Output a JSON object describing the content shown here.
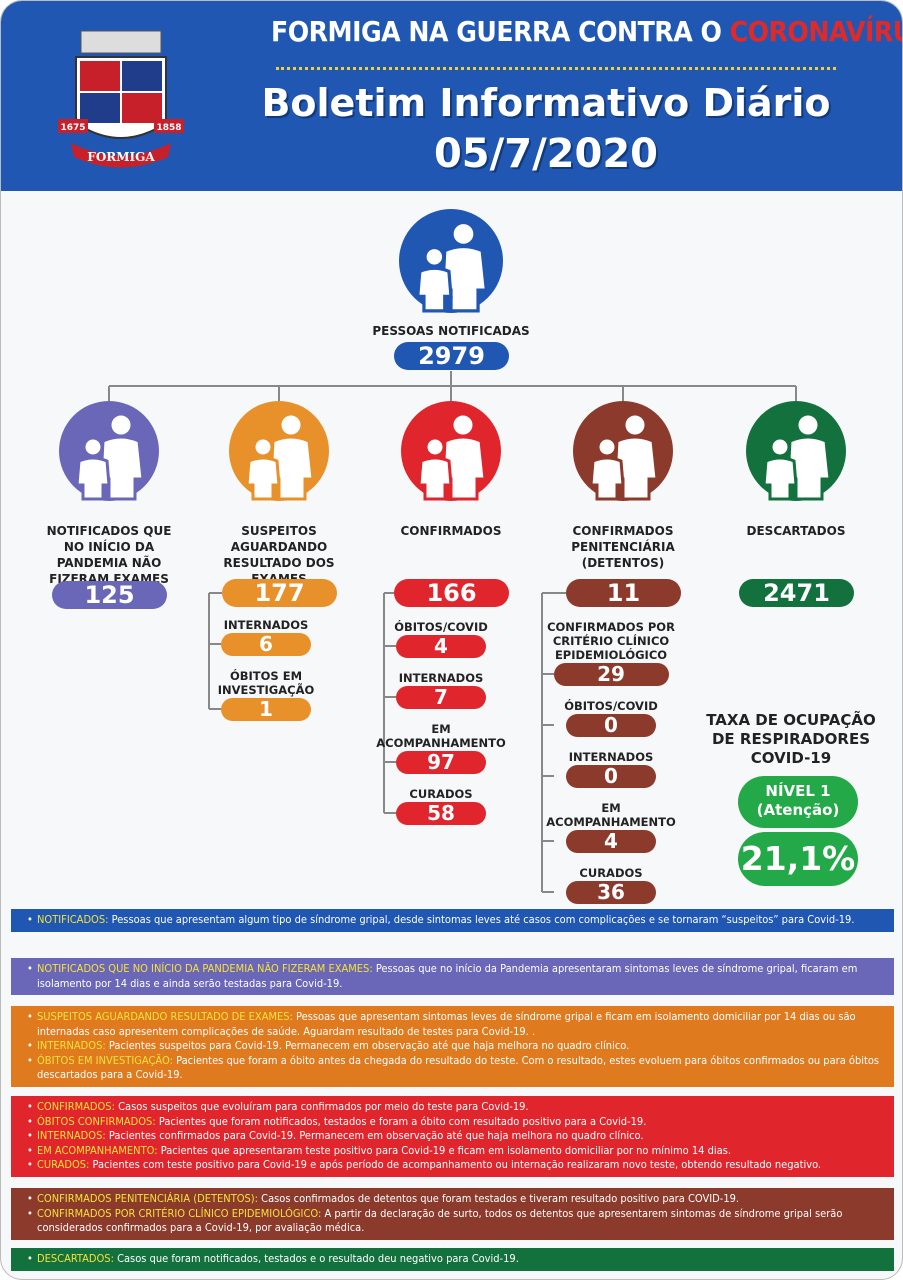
{
  "header": {
    "title_prefix": "FORMIGA NA GUERRA CONTRA O",
    "title_highlight": "CORONAVÍRUS",
    "subtitle": "Boletim Informativo Diário",
    "date": "05/7/2020",
    "logo": {
      "year_left": "1675",
      "year_right": "1858",
      "name": "FORMIGA"
    }
  },
  "notified": {
    "label": "PESSOAS NOTIFICADAS",
    "value": 2979,
    "color": "#2057b3"
  },
  "columns": [
    {
      "label": "NOTIFICADOS QUE NO INÍCIO DA PANDEMIA NÃO FIZERAM EXAMES",
      "value": 125,
      "color": "#6b67b8",
      "items": []
    },
    {
      "label": "SUSPEITOS AGUARDANDO RESULTADO DOS EXAMES",
      "value": 177,
      "color": "#e8912a",
      "items": [
        {
          "label": "INTERNADOS",
          "value": 6
        },
        {
          "label": "ÓBITOS EM INVESTIGAÇÃO",
          "value": 1
        }
      ]
    },
    {
      "label": "CONFIRMADOS",
      "value": 166,
      "color": "#e0252d",
      "items": [
        {
          "label": "ÓBITOS/COVID",
          "value": 4
        },
        {
          "label": "INTERNADOS",
          "value": 7
        },
        {
          "label": "EM ACOMPANHAMENTO",
          "value": 97
        },
        {
          "label": "CURADOS",
          "value": 58
        }
      ]
    },
    {
      "label": "CONFIRMADOS PENITENCIÁRIA (DETENTOS)",
      "value": 11,
      "color": "#8b3a2c",
      "items": [
        {
          "label": "CONFIRMADOS POR CRITÉRIO CLÍNICO EPIDEMIOLÓGICO",
          "value": 29
        },
        {
          "label": "ÓBITOS/COVID",
          "value": 0
        },
        {
          "label": "INTERNADOS",
          "value": 0
        },
        {
          "label": "EM ACOMPANHAMENTO",
          "value": 4
        },
        {
          "label": "CURADOS",
          "value": 36
        }
      ]
    },
    {
      "label": "DESCARTADOS",
      "value": 2471,
      "color": "#13713e",
      "items": []
    }
  ],
  "respirators": {
    "title": "TAXA DE OCUPAÇÃO DE RESPIRADORES COVID-19",
    "level": "NÍVEL 1",
    "level_note": "(Atenção)",
    "rate": "21,1%",
    "color": "#24a948"
  },
  "legend": [
    {
      "color": "#2057b3",
      "items": [
        {
          "term": "NOTIFICADOS:",
          "text": "Pessoas que apresentam algum tipo de síndrome gripal, desde sintomas leves até casos com complicações e se tornaram “suspeitos” para Covid-19."
        }
      ]
    },
    {
      "color": "#6b67b8",
      "items": [
        {
          "term": "NOTIFICADOS QUE NO INÍCIO DA PANDEMIA NÃO FIZERAM EXAMES:",
          "text": "Pessoas que no início da Pandemia apresentaram sintomas leves de síndrome gripal, ficaram em isolamento por 14 dias e ainda serão testadas para Covid-19."
        }
      ]
    },
    {
      "color": "#e07a1f",
      "items": [
        {
          "term": "SUSPEITOS AGUARDANDO RESULTADO DE EXAMES:",
          "text": "Pessoas que apresentam sintomas leves de síndrome gripal e ficam em isolamento domiciliar por 14 dias ou são internadas caso apresentem complicações de saúde. Aguardam resultado de testes para Covid-19. ."
        },
        {
          "term": "INTERNADOS:",
          "text": "Pacientes suspeitos para Covid-19. Permanecem em observação até que haja melhora no quadro clínico."
        },
        {
          "term": "ÓBITOS EM INVESTIGAÇÃO:",
          "text": "Pacientes que foram a óbito antes da chegada do resultado do teste. Com o resultado, estes evoluem para óbitos confirmados ou para óbitos descartados para a Covid-19."
        }
      ]
    },
    {
      "color": "#e0252d",
      "items": [
        {
          "term": "CONFIRMADOS:",
          "text": "Casos suspeitos que evoluíram para confirmados por meio do teste para Covid-19."
        },
        {
          "term": "ÓBITOS CONFIRMADOS:",
          "text": "Pacientes que foram notificados, testados e foram a óbito com resultado positivo para a Covid-19."
        },
        {
          "term": "INTERNADOS:",
          "text": "Pacientes confirmados para Covid-19. Permanecem em observação até que haja melhora no quadro clínico."
        },
        {
          "term": "EM ACOMPANHAMENTO:",
          "text": "Pacientes que apresentaram teste positivo para Covid-19 e ficam em isolamento domiciliar por no mínimo 14 dias."
        },
        {
          "term": "CURADOS:",
          "text": "Pacientes com teste positivo para Covid-19 e após período de acompanhamento ou internação realizaram novo teste, obtendo resultado negativo."
        }
      ]
    },
    {
      "color": "#8b3a2c",
      "items": [
        {
          "term": "CONFIRMADOS PENITENCIÁRIA (DETENTOS):",
          "text": "Casos confirmados de detentos que foram testados e tiveram resultado positivo para COVID-19."
        },
        {
          "term": "CONFIRMADOS POR CRITÉRIO CLÍNICO EPIDEMIOLÓGICO:",
          "text": "A partir da declaração de surto, todos os detentos que apresentarem sintomas de síndrome gripal serão considerados confirmados para a Covid-19, por avaliação médica."
        }
      ]
    },
    {
      "color": "#13713e",
      "items": [
        {
          "term": "DESCARTADOS:",
          "text": "Casos que foram notificados, testados e o resultado deu negativo para Covid-19."
        }
      ]
    }
  ]
}
